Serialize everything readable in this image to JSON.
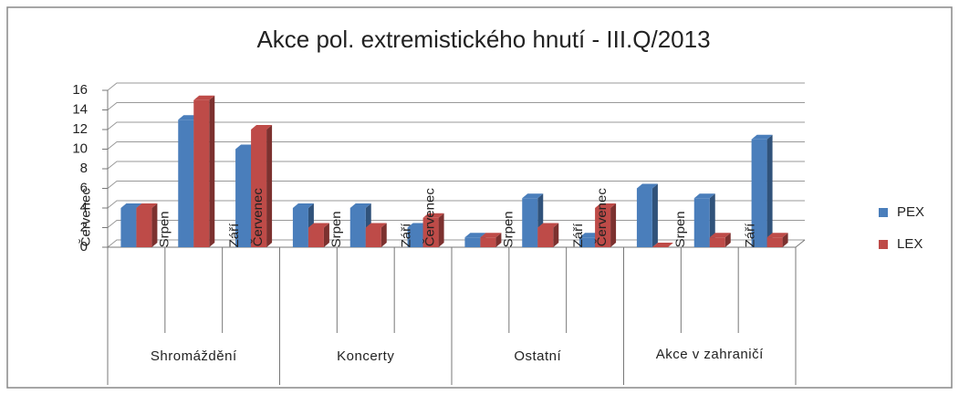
{
  "chart_data": {
    "type": "bar3d",
    "title": "Akce pol. extremistického hnutí - III.Q/2013",
    "categories": [
      "Červenec",
      "Srpen",
      "Září",
      "Červenec",
      "Srpen",
      "Září",
      "Červenec",
      "Srpen",
      "Září",
      "Červenec",
      "Srpen",
      "Září"
    ],
    "groups": [
      "Shromáždění",
      "Koncerty",
      "Ostatní",
      "Akce v zahraničí"
    ],
    "series": [
      {
        "name": "PEX",
        "color": "#4a7ebb",
        "values": [
          4,
          13,
          10,
          4,
          4,
          2,
          1,
          5,
          1,
          6,
          5,
          11
        ]
      },
      {
        "name": "LEX",
        "color": "#be4b48",
        "values": [
          4,
          15,
          12,
          2,
          2,
          3,
          1,
          2,
          4,
          0,
          1,
          1
        ]
      }
    ],
    "ylim": [
      0,
      16
    ],
    "yticks": [
      0,
      2,
      4,
      6,
      8,
      10,
      12,
      14,
      16
    ],
    "grid": true,
    "legend": "right"
  }
}
